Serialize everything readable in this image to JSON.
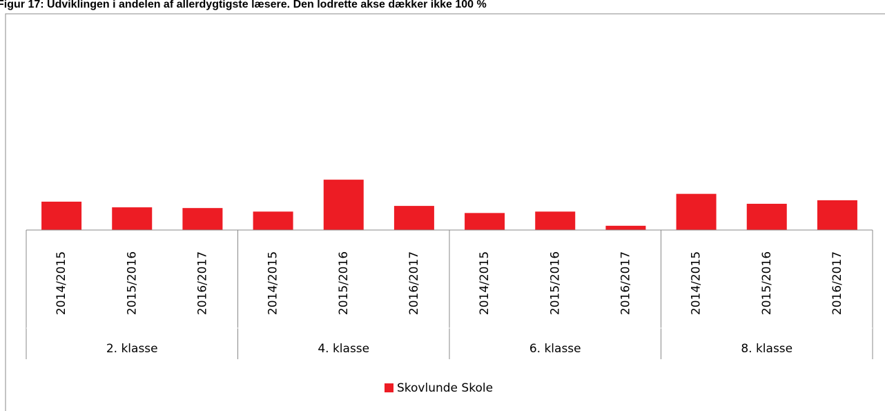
{
  "chart_data": {
    "type": "bar",
    "title": "Figur 17: Udviklingen i andelen af allerdygtigste læsere. Den lodrette akse dækker ikke 100 %",
    "groups": [
      "2. klasse",
      "4. klasse",
      "6. klasse",
      "8. klasse"
    ],
    "categories": [
      "2014/2015",
      "2015/2016",
      "2016/2017",
      "2014/2015",
      "2015/2016",
      "2016/2017",
      "2014/2015",
      "2015/2016",
      "2016/2017",
      "2014/2015",
      "2015/2016",
      "2016/2017"
    ],
    "series": [
      {
        "name": "Skovlunde Skole",
        "color": "#ed1c24",
        "values": [
          4.0,
          3.2,
          3.1,
          2.6,
          7.1,
          3.4,
          2.4,
          2.6,
          0.6,
          5.1,
          3.7,
          4.2
        ]
      }
    ],
    "ylim": [
      0,
      30
    ],
    "legend": "bottom"
  }
}
